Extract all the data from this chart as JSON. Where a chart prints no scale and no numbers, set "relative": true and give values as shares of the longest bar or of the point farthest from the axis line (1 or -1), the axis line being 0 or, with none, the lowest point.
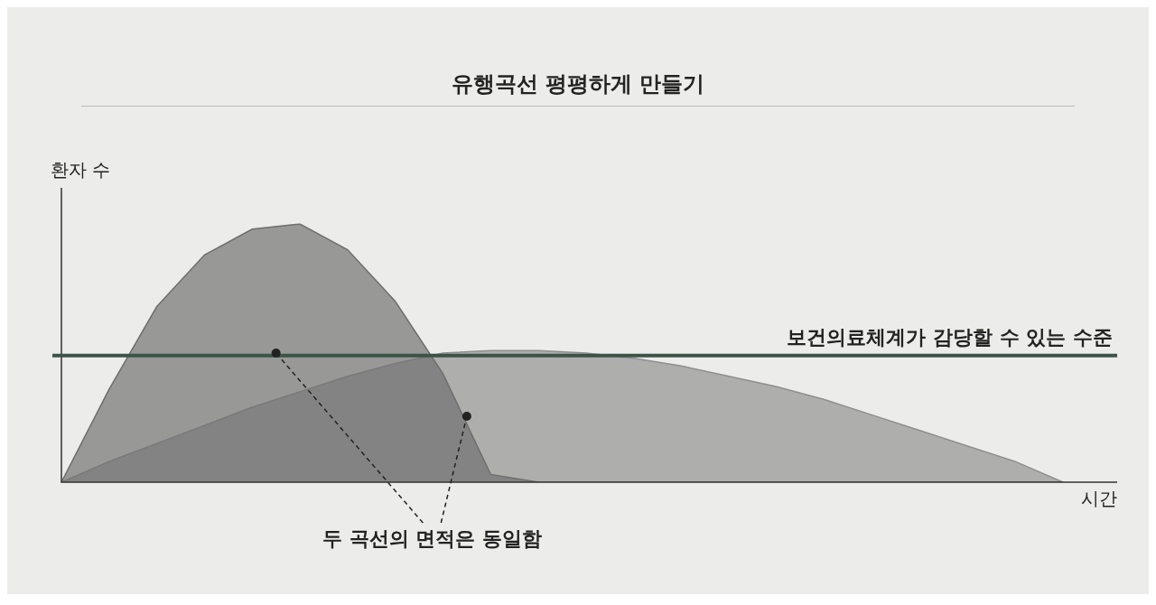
{
  "chart_data": {
    "type": "area",
    "title": "유행곡선 평평하게 만들기",
    "xlabel": "시간",
    "ylabel": "환자 수",
    "relative": true,
    "categories": [
      null,
      null,
      null,
      null,
      null,
      null,
      null,
      null,
      null,
      null,
      null,
      null,
      null,
      null,
      null,
      null,
      null,
      null,
      null,
      null,
      null,
      null
    ],
    "series": [
      {
        "color": "#6e6e6e",
        "values": [
          0,
          0.36,
          0.68,
          0.88,
          0.98,
          1,
          0.9,
          0.7,
          0.42,
          0.03,
          0,
          0,
          0,
          0,
          0,
          0,
          0,
          0,
          0,
          0,
          0,
          0
        ]
      },
      {
        "color": "#8f8f8f",
        "values": [
          0,
          0.08,
          0.15,
          0.22,
          0.29,
          0.35,
          0.41,
          0.46,
          0.5,
          0.51,
          0.51,
          0.5,
          0.48,
          0.45,
          0.41,
          0.37,
          0.32,
          0.26,
          0.2,
          0.14,
          0.08,
          0
        ]
      }
    ],
    "ref_lines": [
      {
        "axis": "y",
        "value": 0.49,
        "label": "보건의료체계가 감당할 수 있는 수준",
        "color": "#3b5446"
      }
    ],
    "annotations": [
      "두 곡선의 면적은 동일함"
    ]
  }
}
